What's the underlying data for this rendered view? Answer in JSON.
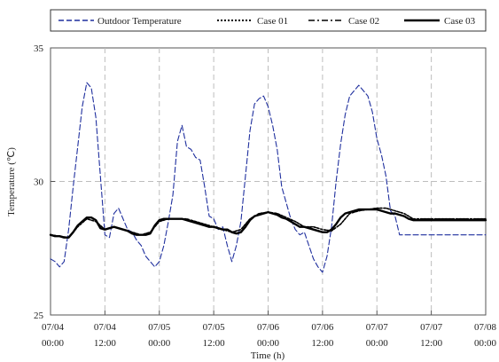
{
  "chart_data": {
    "type": "line",
    "xlabel": "Time (h)",
    "ylabel": "Temperature (℃)",
    "ylim": [
      25,
      35
    ],
    "yticks": [
      25,
      30,
      35
    ],
    "xlim": [
      0,
      96
    ],
    "xticks": [
      {
        "x": 0,
        "date": "07/04",
        "time": "00:00"
      },
      {
        "x": 12,
        "date": "07/04",
        "time": "12:00"
      },
      {
        "x": 24,
        "date": "07/05",
        "time": "00:00"
      },
      {
        "x": 36,
        "date": "07/05",
        "time": "12:00"
      },
      {
        "x": 48,
        "date": "07/06",
        "time": "00:00"
      },
      {
        "x": 60,
        "date": "07/06",
        "time": "12:00"
      },
      {
        "x": 72,
        "date": "07/07",
        "time": "00:00"
      },
      {
        "x": 84,
        "date": "07/07",
        "time": "12:00"
      },
      {
        "x": 96,
        "date": "07/08",
        "time": "00:00"
      }
    ],
    "grid": true,
    "legend_position": "top",
    "series": [
      {
        "name": "Outdoor Temperature",
        "style": "dashed",
        "color": "#1f2f9e",
        "x": [
          0,
          1,
          2,
          3,
          4,
          5,
          6,
          7,
          8,
          9,
          10,
          11,
          12,
          13,
          14,
          15,
          16,
          17,
          18,
          19,
          20,
          21,
          22,
          23,
          24,
          25,
          26,
          27,
          28,
          29,
          30,
          31,
          32,
          33,
          34,
          35,
          36,
          37,
          38,
          39,
          40,
          41,
          42,
          43,
          44,
          45,
          46,
          47,
          48,
          49,
          50,
          51,
          52,
          53,
          54,
          55,
          56,
          57,
          58,
          59,
          60,
          61,
          62,
          63,
          64,
          65,
          66,
          67,
          68,
          69,
          70,
          71,
          72,
          73,
          74,
          75,
          76,
          77,
          78,
          79,
          80,
          81,
          82,
          83,
          84,
          85,
          86,
          87,
          88,
          89,
          90,
          91,
          92,
          93,
          94,
          95,
          96
        ],
        "values": [
          27.1,
          27.0,
          26.8,
          27.0,
          28.2,
          29.8,
          31.3,
          32.8,
          33.7,
          33.5,
          32.4,
          30.2,
          28.0,
          27.9,
          28.8,
          29.0,
          28.6,
          28.2,
          28.1,
          27.8,
          27.6,
          27.2,
          27.0,
          26.8,
          27.0,
          27.6,
          28.5,
          29.5,
          31.5,
          32.1,
          31.3,
          31.2,
          30.9,
          30.8,
          29.8,
          28.7,
          28.6,
          28.2,
          28.3,
          27.6,
          27.0,
          27.6,
          28.5,
          30.2,
          31.9,
          32.9,
          33.1,
          33.2,
          32.8,
          32.1,
          31.2,
          29.8,
          29.2,
          28.6,
          28.2,
          28.0,
          28.1,
          27.6,
          27.1,
          26.8,
          26.6,
          27.2,
          28.3,
          30.0,
          31.4,
          32.5,
          33.2,
          33.4,
          33.6,
          33.4,
          33.2,
          32.6,
          31.6,
          31.0,
          30.2,
          28.9,
          28.7,
          28.0,
          28.0,
          28.0,
          28.0,
          28.0,
          28.0,
          28.0,
          28.0,
          28.0,
          28.0,
          28.0,
          28.0,
          28.0,
          28.0,
          28.0,
          28.0,
          28.0,
          28.0,
          28.0,
          28.0
        ]
      },
      {
        "name": "Case 01",
        "style": "dotted",
        "color": "#000000",
        "x": [
          0,
          2,
          4,
          6,
          8,
          10,
          12,
          14,
          16,
          18,
          20,
          22,
          24,
          26,
          28,
          30,
          32,
          34,
          36,
          38,
          40,
          42,
          44,
          46,
          48,
          50,
          52,
          54,
          56,
          58,
          60,
          62,
          64,
          66,
          68,
          70,
          72,
          74,
          76,
          78,
          80,
          82,
          84,
          86,
          88,
          90,
          92,
          94,
          96
        ],
        "values": [
          28.0,
          27.95,
          27.9,
          28.3,
          28.6,
          28.5,
          28.2,
          28.3,
          28.2,
          28.1,
          28.0,
          28.1,
          28.5,
          28.6,
          28.6,
          28.6,
          28.5,
          28.4,
          28.3,
          28.2,
          28.1,
          28.2,
          28.6,
          28.8,
          28.85,
          28.8,
          28.65,
          28.5,
          28.3,
          28.3,
          28.2,
          28.15,
          28.4,
          28.8,
          28.9,
          28.95,
          29.0,
          29.0,
          28.9,
          28.8,
          28.6,
          28.6,
          28.6,
          28.6,
          28.6,
          28.6,
          28.6,
          28.6,
          28.6
        ]
      },
      {
        "name": "Case 02",
        "style": "dashdot",
        "color": "#000000",
        "x": [
          0,
          2,
          4,
          6,
          8,
          10,
          12,
          14,
          16,
          18,
          20,
          22,
          24,
          26,
          28,
          30,
          32,
          34,
          36,
          38,
          40,
          42,
          44,
          46,
          48,
          50,
          52,
          54,
          56,
          58,
          60,
          62,
          64,
          66,
          68,
          70,
          72,
          74,
          76,
          78,
          80,
          82,
          84,
          86,
          88,
          90,
          92,
          94,
          96
        ],
        "values": [
          28.0,
          27.95,
          27.9,
          28.3,
          28.6,
          28.5,
          28.2,
          28.3,
          28.2,
          28.1,
          28.0,
          28.1,
          28.5,
          28.6,
          28.6,
          28.6,
          28.5,
          28.4,
          28.3,
          28.2,
          28.1,
          28.2,
          28.6,
          28.8,
          28.85,
          28.8,
          28.65,
          28.5,
          28.3,
          28.3,
          28.2,
          28.15,
          28.4,
          28.8,
          28.9,
          28.95,
          29.0,
          29.0,
          28.9,
          28.8,
          28.6,
          28.6,
          28.6,
          28.6,
          28.6,
          28.6,
          28.6,
          28.6,
          28.6
        ]
      },
      {
        "name": "Case 03",
        "style": "solid",
        "color": "#000000",
        "x": [
          0,
          1,
          2,
          3,
          4,
          5,
          6,
          7,
          8,
          9,
          10,
          11,
          12,
          13,
          14,
          15,
          16,
          17,
          18,
          19,
          20,
          21,
          22,
          23,
          24,
          25,
          26,
          27,
          28,
          29,
          30,
          31,
          32,
          33,
          34,
          35,
          36,
          37,
          38,
          39,
          40,
          41,
          42,
          43,
          44,
          45,
          46,
          47,
          48,
          49,
          50,
          51,
          52,
          53,
          54,
          55,
          56,
          57,
          58,
          59,
          60,
          61,
          62,
          63,
          64,
          65,
          66,
          67,
          68,
          69,
          70,
          71,
          72,
          73,
          74,
          75,
          76,
          77,
          78,
          79,
          80,
          81,
          82,
          83,
          84,
          85,
          86,
          87,
          88,
          89,
          90,
          91,
          92,
          93,
          94,
          95,
          96
        ],
        "values": [
          28.0,
          27.95,
          27.95,
          27.9,
          27.9,
          28.1,
          28.35,
          28.5,
          28.65,
          28.65,
          28.55,
          28.25,
          28.2,
          28.25,
          28.3,
          28.25,
          28.2,
          28.15,
          28.05,
          28.0,
          28.0,
          28.0,
          28.05,
          28.35,
          28.55,
          28.6,
          28.6,
          28.6,
          28.6,
          28.6,
          28.55,
          28.5,
          28.45,
          28.4,
          28.35,
          28.3,
          28.3,
          28.25,
          28.2,
          28.2,
          28.1,
          28.05,
          28.1,
          28.3,
          28.55,
          28.7,
          28.75,
          28.8,
          28.85,
          28.8,
          28.75,
          28.65,
          28.6,
          28.5,
          28.4,
          28.3,
          28.3,
          28.25,
          28.2,
          28.15,
          28.1,
          28.1,
          28.2,
          28.4,
          28.65,
          28.8,
          28.85,
          28.9,
          28.95,
          28.95,
          28.95,
          28.95,
          28.95,
          28.9,
          28.85,
          28.8,
          28.8,
          28.75,
          28.7,
          28.6,
          28.55,
          28.55,
          28.55,
          28.55,
          28.55,
          28.55,
          28.55,
          28.55,
          28.55,
          28.55,
          28.55,
          28.55,
          28.55,
          28.55,
          28.55,
          28.55,
          28.55
        ]
      }
    ]
  }
}
